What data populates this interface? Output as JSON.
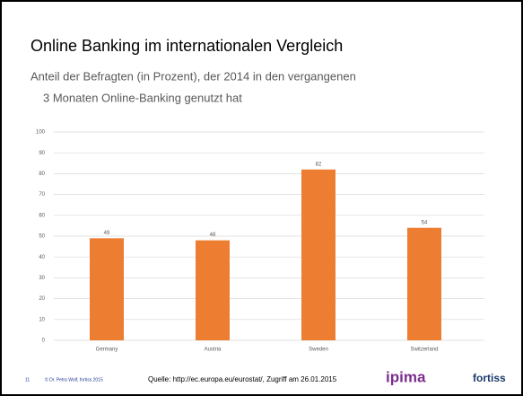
{
  "chart_data": {
    "type": "bar",
    "title": "Online Banking im internationalen Vergleich",
    "subtitle": [
      "Anteil der Befragten (in Prozent), der 2014 in den vergangenen",
      "3 Monaten Online-Banking genutzt hat"
    ],
    "categories": [
      "Germany",
      "Austria",
      "Sweden",
      "Switzerland"
    ],
    "values": [
      49,
      48,
      82,
      54
    ],
    "color": "#ed7d31",
    "ylim": [
      0,
      100
    ],
    "yticks": [
      0,
      10,
      20,
      30,
      40,
      50,
      60,
      70,
      80,
      90,
      100
    ],
    "grid": true
  },
  "footer": {
    "page": "11",
    "author": "© Dr. Petra Wolf, fortiss 2015",
    "source": "Quelle: http://ec.europa.eu/eurostat/, Zugriff am 26.01.2015",
    "logos": [
      "ipima",
      "fortiss"
    ]
  }
}
